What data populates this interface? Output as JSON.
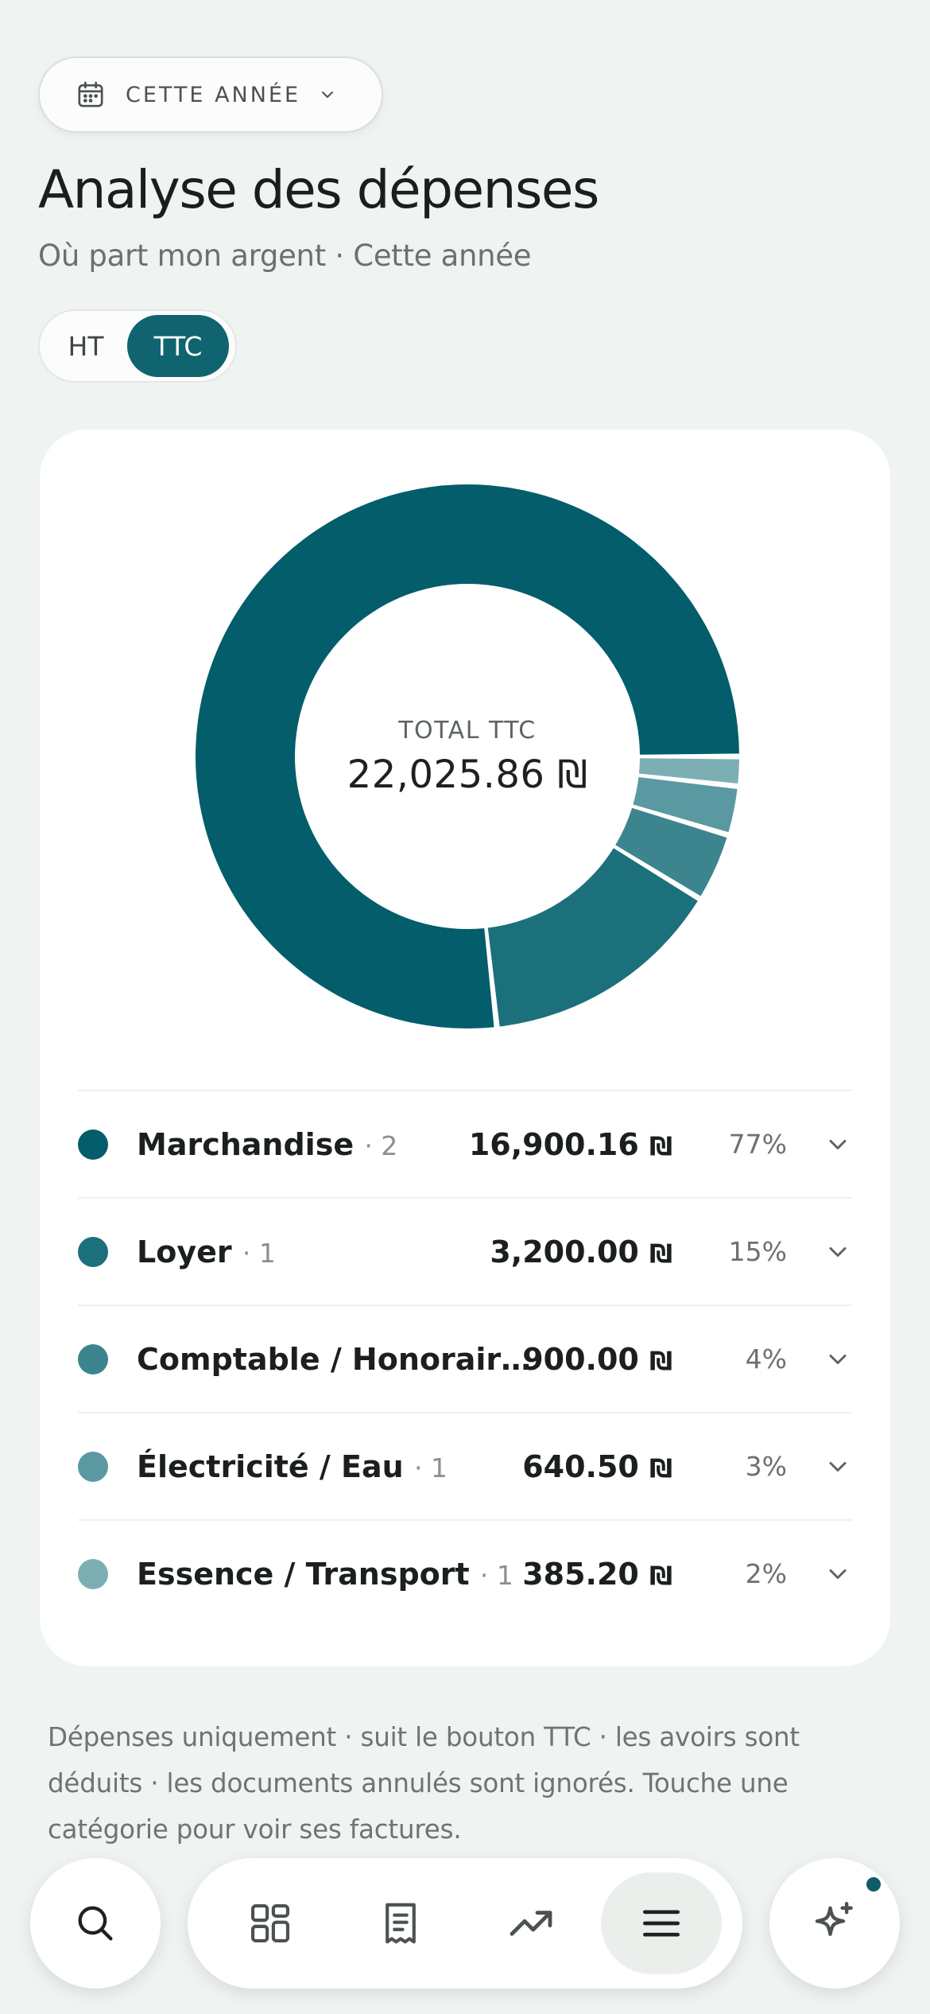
{
  "period": {
    "label": "CETTE ANNÉE"
  },
  "header": {
    "title": "Analyse des dépenses",
    "subtitle": "Où part mon argent · Cette année"
  },
  "tax_toggle": {
    "options": [
      "HT",
      "TTC"
    ],
    "selected": "TTC"
  },
  "summary": {
    "caption": "TOTAL TTC",
    "total": "22,025.86 ₪"
  },
  "categories": [
    {
      "name": "Marchandise",
      "count": "· 2",
      "amount": "16,900.16",
      "currency": "₪",
      "percent": "77%",
      "color": "#035d6b"
    },
    {
      "name": "Loyer",
      "count": "· 1",
      "amount": "3,200.00",
      "currency": "₪",
      "percent": "15%",
      "color": "#1b707b"
    },
    {
      "name": "Comptable / Honorair…",
      "count": "",
      "amount": "900.00",
      "currency": "₪",
      "percent": "4%",
      "color": "#3c858e"
    },
    {
      "name": "Électricité / Eau",
      "count": "· 1",
      "amount": "640.50",
      "currency": "₪",
      "percent": "3%",
      "color": "#5a99a1"
    },
    {
      "name": "Essence / Transport",
      "count": "· 1",
      "amount": "385.20",
      "currency": "₪",
      "percent": "2%",
      "color": "#7cafb4"
    }
  ],
  "chart_data": {
    "type": "pie",
    "title": "TOTAL TTC",
    "categories": [
      "Marchandise",
      "Loyer",
      "Comptable / Honorair…",
      "Électricité / Eau",
      "Essence / Transport"
    ],
    "values": [
      16900.16,
      3200.0,
      900.0,
      640.5,
      385.2
    ],
    "total": 22025.86,
    "colors": [
      "#035d6b",
      "#1b707b",
      "#3c858e",
      "#5a99a1",
      "#7cafb4"
    ]
  },
  "footnote": "Dépenses uniquement · suit le bouton TTC · les avoirs sont déduits · les documents annulés sont ignorés. Touche une catégorie pour voir ses factures.",
  "nav": {
    "items": [
      "search-icon",
      "dashboard-grid-icon",
      "receipt-icon",
      "trending-up-icon",
      "menu-icon",
      "sparkle-ai-icon"
    ],
    "active": "menu-icon"
  }
}
